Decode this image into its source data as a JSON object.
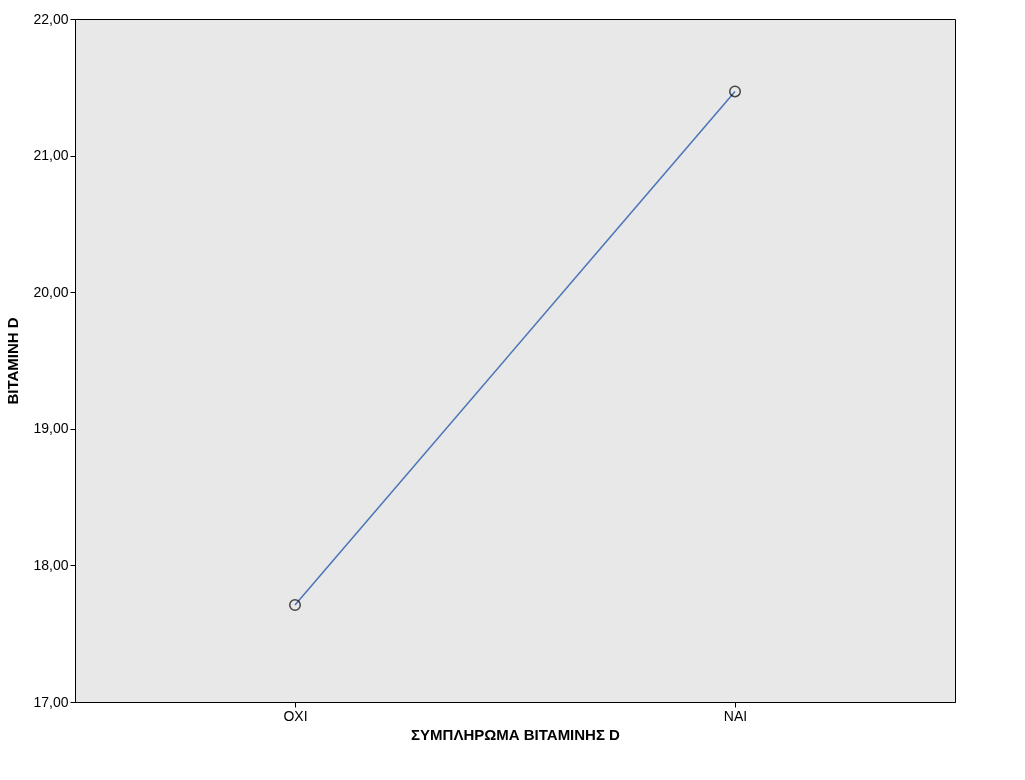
{
  "chart_data": {
    "type": "line",
    "xlabel": "ΣΥΜΠΛΗΡΩΜΑ ΒΙΤΑΜΙΝΗΣ D",
    "ylabel": "ΒΙΤΑΜΙΝΗ D",
    "categories": [
      "ΟΧΙ",
      "ΝΑΙ"
    ],
    "series": [
      {
        "color": "#4a74b8",
        "values": [
          17.71,
          21.47
        ]
      }
    ],
    "ylim": [
      17,
      22
    ],
    "yticks": [
      {
        "value": 17,
        "label": "17,00"
      },
      {
        "value": 18,
        "label": "18,00"
      },
      {
        "value": 19,
        "label": "19,00"
      },
      {
        "value": 20,
        "label": "20,00"
      },
      {
        "value": 21,
        "label": "21,00"
      },
      {
        "value": 22,
        "label": "22,00"
      }
    ],
    "grid": false,
    "marker": "circle",
    "line_style": "solid"
  }
}
